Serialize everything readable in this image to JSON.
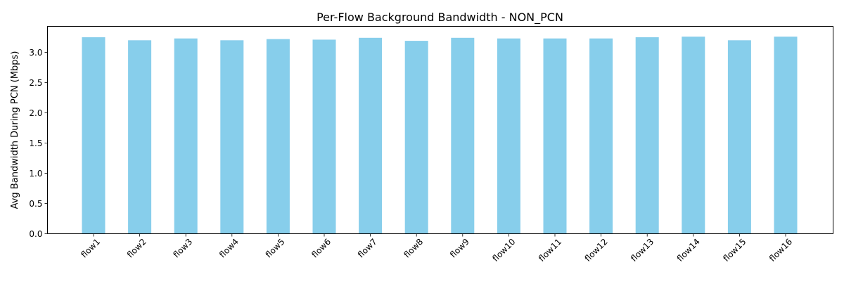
{
  "chart_data": {
    "type": "bar",
    "title": "Per-Flow Background Bandwidth - NON_PCN",
    "xlabel": "",
    "ylabel": "Avg Bandwidth During PCN (Mbps)",
    "categories": [
      "flow1",
      "flow2",
      "flow3",
      "flow4",
      "flow5",
      "flow6",
      "flow7",
      "flow8",
      "flow9",
      "flow10",
      "flow11",
      "flow12",
      "flow13",
      "flow14",
      "flow15",
      "flow16"
    ],
    "values": [
      3.25,
      3.2,
      3.23,
      3.2,
      3.22,
      3.21,
      3.24,
      3.19,
      3.24,
      3.23,
      3.23,
      3.23,
      3.25,
      3.26,
      3.2,
      3.26
    ],
    "ylim": [
      0,
      3.43
    ],
    "yticks": [
      0.0,
      0.5,
      1.0,
      1.5,
      2.0,
      2.5,
      3.0
    ],
    "ytick_labels": [
      "0.0",
      "0.5",
      "1.0",
      "1.5",
      "2.0",
      "2.5",
      "3.0"
    ],
    "bar_color": "#87ceeb",
    "grid": false,
    "xtick_rotation": 45
  }
}
